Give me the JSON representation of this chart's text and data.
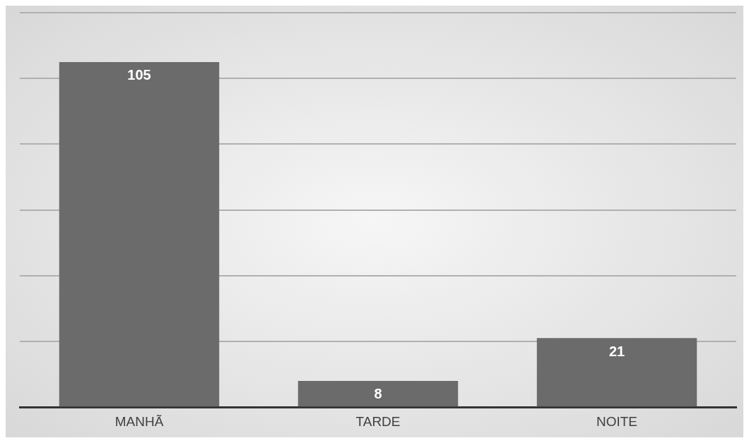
{
  "chart_data": {
    "type": "bar",
    "categories": [
      "MANHÃ",
      "TARDE",
      "NOITE"
    ],
    "values": [
      105,
      8,
      21
    ],
    "color": "#6b6b6b",
    "ylim": [
      0,
      120
    ],
    "yticks": [
      {
        "value": 0,
        "label": null
      },
      {
        "value": 20,
        "label": null
      },
      {
        "value": 40,
        "label": null
      },
      {
        "value": 60,
        "label": null
      },
      {
        "value": 80,
        "label": null
      },
      {
        "value": 100,
        "label": null
      },
      {
        "value": 120,
        "label": null
      }
    ],
    "tick_labels": "x",
    "grid": "y",
    "data_labels": true,
    "legend": false
  }
}
